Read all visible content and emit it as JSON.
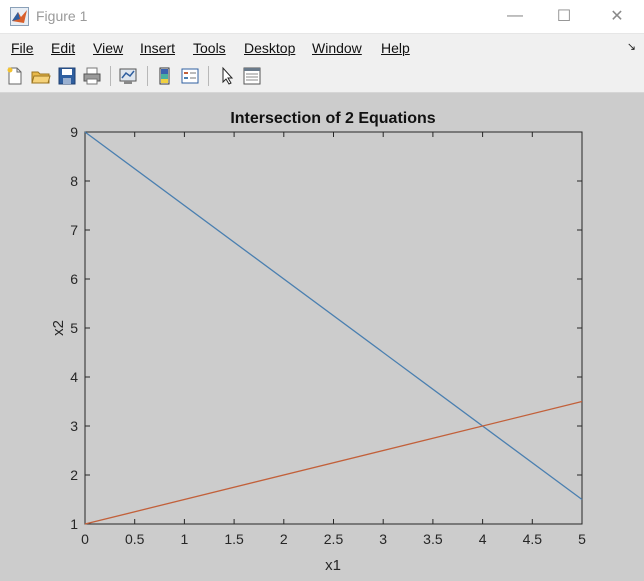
{
  "window": {
    "title": "Figure 1",
    "controls": {
      "minimize": "—",
      "maximize": "☐",
      "close": "✕"
    }
  },
  "menu": {
    "items": [
      {
        "label": "File"
      },
      {
        "label": "Edit"
      },
      {
        "label": "View"
      },
      {
        "label": "Insert"
      },
      {
        "label": "Tools"
      },
      {
        "label": "Desktop"
      },
      {
        "label": "Window"
      },
      {
        "label": "Help"
      }
    ],
    "overflow_glyph": "↘"
  },
  "toolbar": {
    "icons": [
      "new-figure-icon",
      "open-file-icon",
      "save-icon",
      "print-icon",
      "link-plot-icon",
      "colorbar-icon",
      "legend-icon",
      "pointer-icon",
      "property-editor-icon"
    ]
  },
  "chart_data": {
    "type": "line",
    "title": "Intersection of 2 Equations",
    "xlabel": "x1",
    "ylabel": "x2",
    "xlim": [
      0,
      5
    ],
    "ylim": [
      1,
      9
    ],
    "xticks": [
      "0",
      "0.5",
      "1",
      "1.5",
      "2",
      "2.5",
      "3",
      "3.5",
      "4",
      "4.5",
      "5"
    ],
    "yticks": [
      "1",
      "2",
      "3",
      "4",
      "5",
      "6",
      "7",
      "8",
      "9"
    ],
    "grid": false,
    "series": [
      {
        "x": [
          0,
          5
        ],
        "y": [
          9,
          1.5
        ],
        "color": "#4a7fb0"
      },
      {
        "x": [
          0,
          5
        ],
        "y": [
          1,
          3.5
        ],
        "color": "#c2603a"
      }
    ]
  }
}
